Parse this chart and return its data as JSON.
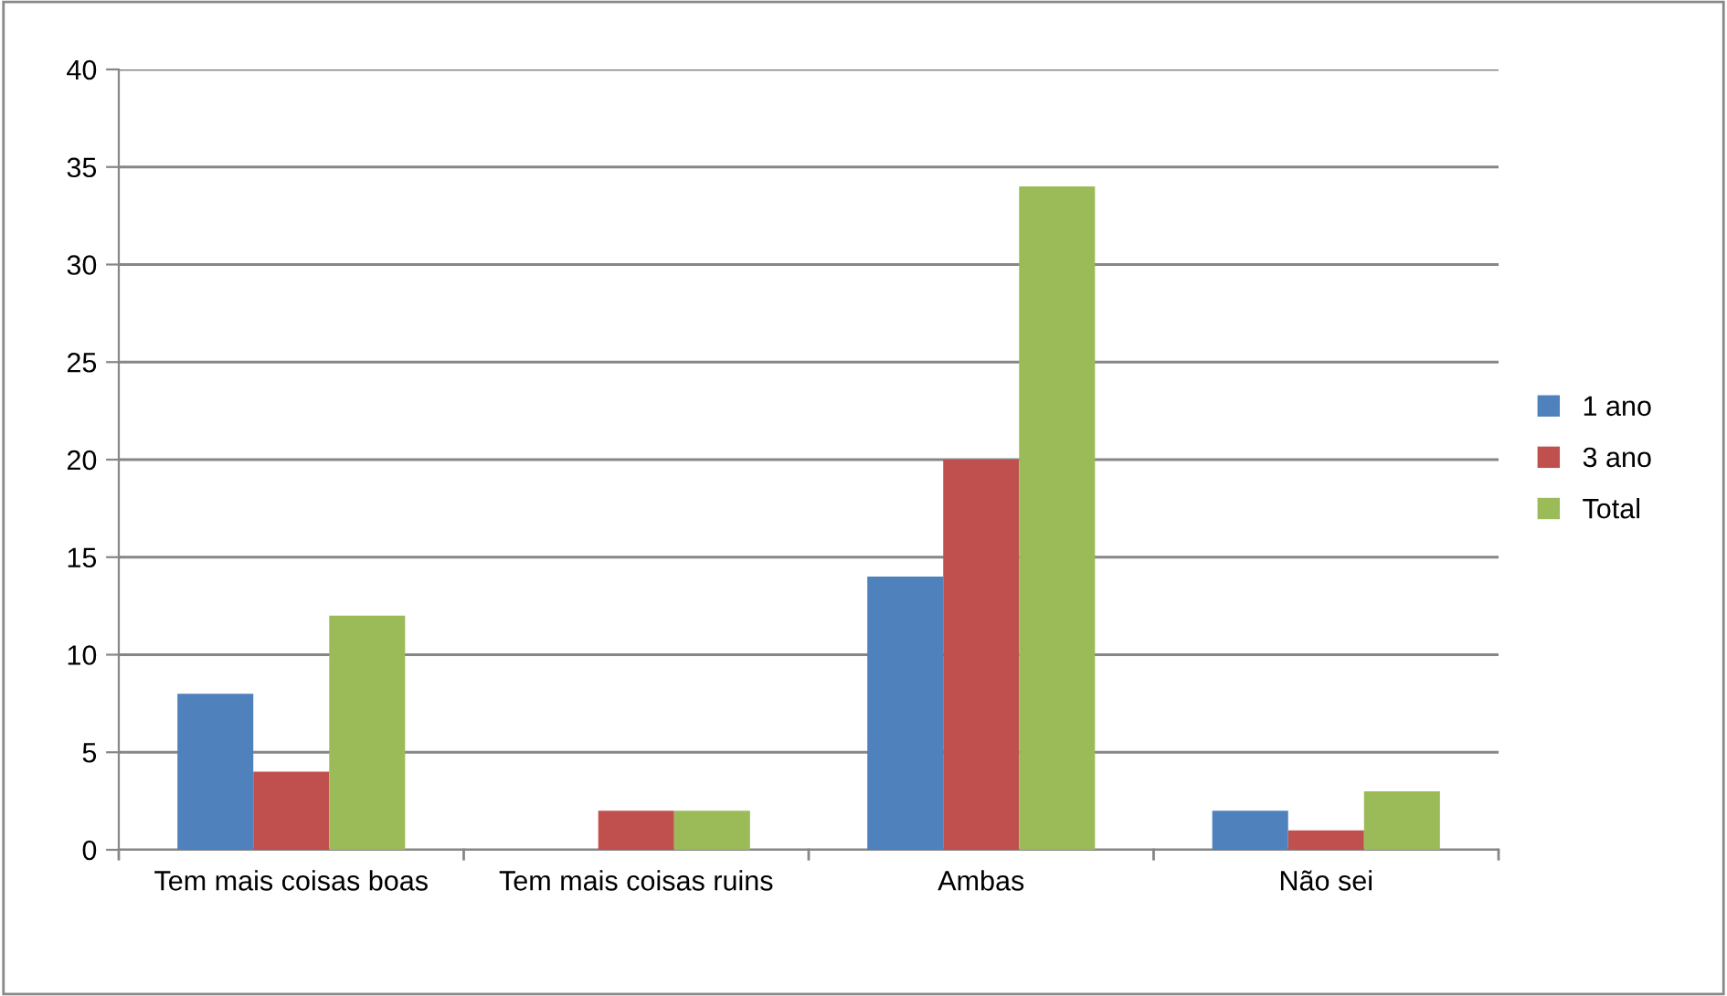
{
  "chart_data": {
    "type": "bar",
    "categories": [
      "Tem mais coisas boas",
      "Tem mais coisas ruins",
      "Ambas",
      "Não sei"
    ],
    "series": [
      {
        "name": "1 ano",
        "color": "#4f81bd",
        "values": [
          8,
          0,
          14,
          2
        ]
      },
      {
        "name": "3 ano",
        "color": "#c0504d",
        "values": [
          4,
          2,
          20,
          1
        ]
      },
      {
        "name": "Total",
        "color": "#9bbb59",
        "values": [
          12,
          2,
          34,
          3
        ]
      }
    ],
    "ylim": [
      0,
      40
    ],
    "yticks": [
      0,
      5,
      10,
      15,
      20,
      25,
      30,
      35,
      40
    ],
    "grid": "y",
    "legend": "right"
  }
}
